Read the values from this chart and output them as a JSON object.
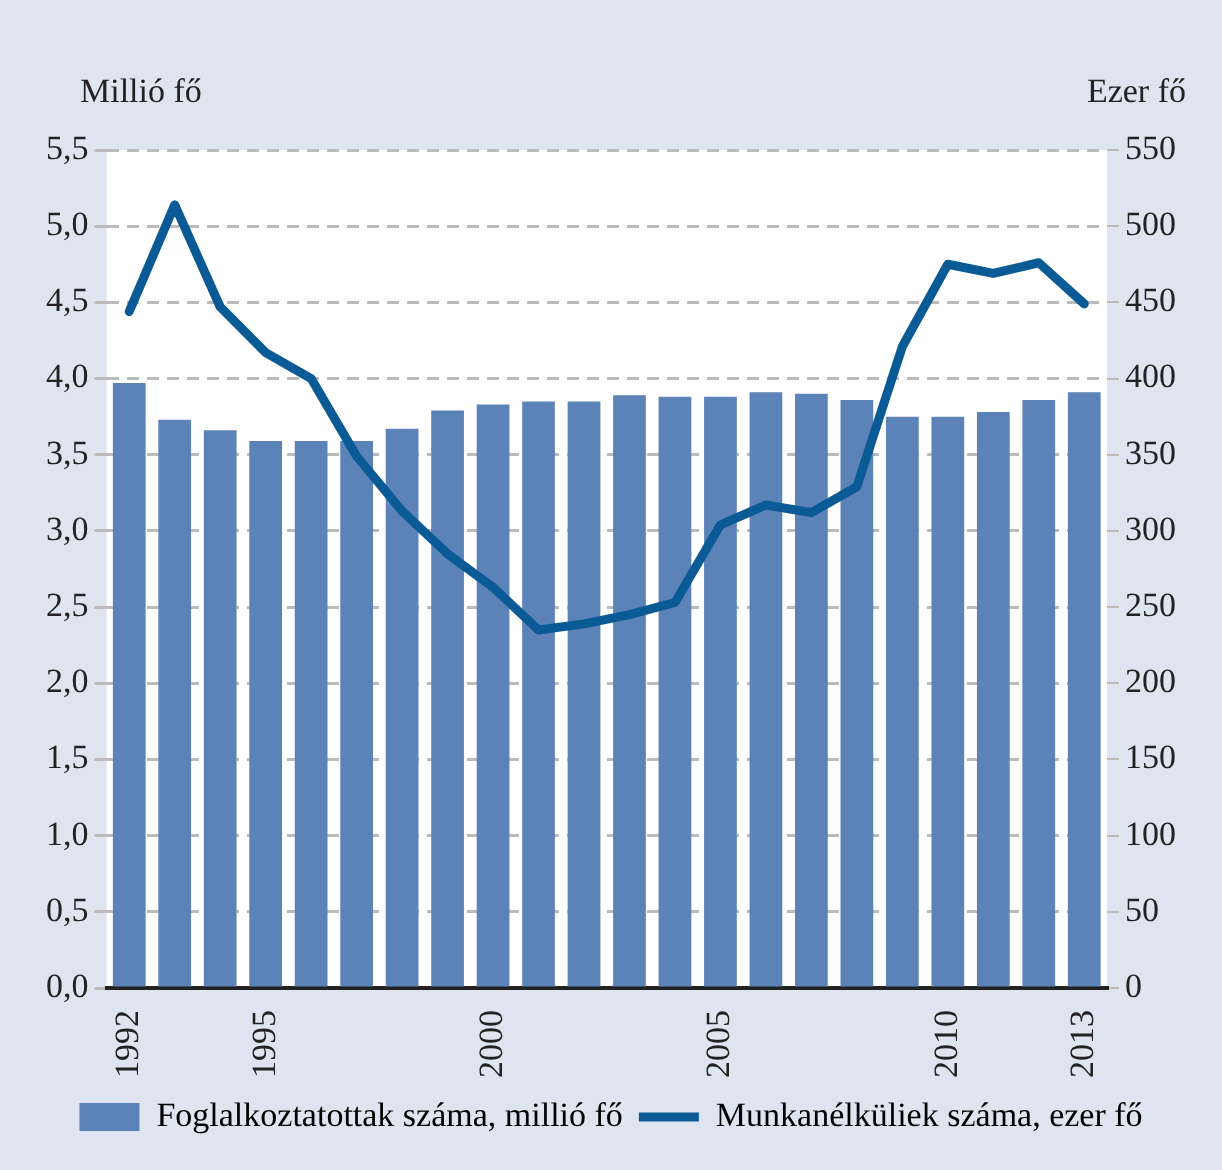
{
  "chart_data": {
    "type": "bar",
    "categories": [
      "1992",
      null,
      null,
      "1995",
      null,
      null,
      null,
      null,
      "2000",
      null,
      null,
      null,
      null,
      "2005",
      null,
      null,
      null,
      null,
      "2010",
      null,
      null,
      "2013"
    ],
    "ylabel": "Millió fő",
    "y2label": "Ezer fő",
    "series": [
      {
        "name": "Foglalkoztatottak száma, millió fő",
        "color": "#5b83b7",
        "values": [
          3.97,
          3.73,
          3.66,
          3.59,
          3.59,
          3.59,
          3.67,
          3.79,
          3.83,
          3.85,
          3.85,
          3.89,
          3.88,
          3.88,
          3.91,
          3.9,
          3.86,
          3.75,
          3.75,
          3.78,
          3.86,
          3.91
        ]
      },
      {
        "name": "Munkanélküliek száma, ezer fő",
        "type": "line",
        "axis": "y2",
        "color": "#0a5a96",
        "values": [
          444,
          514,
          447,
          417,
          400,
          349,
          313,
          285,
          263,
          235,
          239,
          245,
          253,
          304,
          317,
          312,
          329,
          421,
          475,
          469,
          476,
          449
        ]
      }
    ],
    "ylim": [
      0,
      5.5
    ],
    "yticks": [
      {
        "value": 0,
        "label": "0,0"
      },
      {
        "value": 0.5,
        "label": "0,5"
      },
      {
        "value": 1,
        "label": "1,0"
      },
      {
        "value": 1.5,
        "label": "1,5"
      },
      {
        "value": 2,
        "label": "2,0"
      },
      {
        "value": 2.5,
        "label": "2,5"
      },
      {
        "value": 3,
        "label": "3,0"
      },
      {
        "value": 3.5,
        "label": "3,5"
      },
      {
        "value": 4,
        "label": "4,0"
      },
      {
        "value": 4.5,
        "label": "4,5"
      },
      {
        "value": 5,
        "label": "5,0"
      },
      {
        "value": 5.5,
        "label": "5,5"
      }
    ],
    "y2lim": [
      0,
      550
    ],
    "y2ticks": [
      0,
      50,
      100,
      150,
      200,
      250,
      300,
      350,
      400,
      450,
      500,
      550
    ],
    "grid": "y",
    "legend": "bottom",
    "marker": "none",
    "line_style": "solid"
  }
}
